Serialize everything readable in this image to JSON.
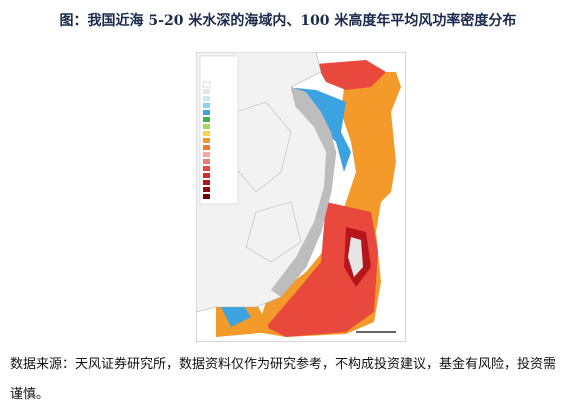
{
  "figure": {
    "title": "图：我国近海 5-20 米水深的海域内、100 米高度年平均风功率密度分布",
    "source": "数据来源：天风证券研究所，数据资料仅作为研究参考，不构成投资建议，基金有风险，投资需谨慎。"
  }
}
